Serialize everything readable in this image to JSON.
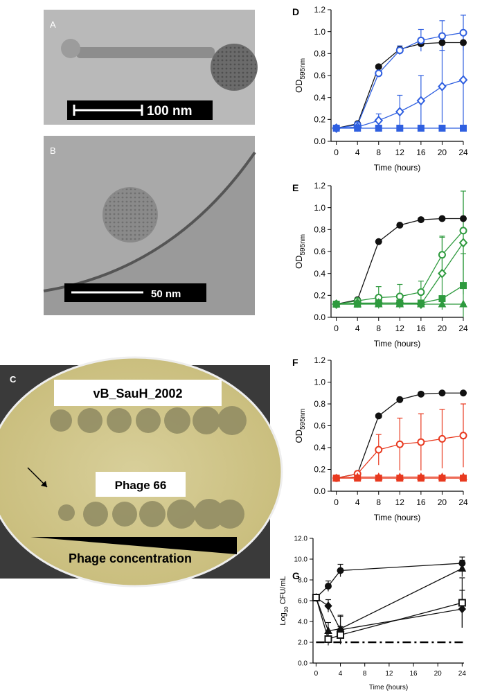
{
  "panels": [
    {
      "label": "A",
      "scale_bar": "100 nm"
    },
    {
      "label": "B",
      "scale_bar": "50 nm"
    }
  ],
  "plate": {
    "label": "C",
    "top_label": "vB_SauH_2002",
    "bottom_label": "Phage 66",
    "gradient_label": "Phage concentration"
  },
  "chart_data": [
    {
      "type": "line",
      "panel": "D",
      "x_label": "Time (hours)",
      "y_label": "OD",
      "y_label_sub": "595nm",
      "x": [
        0,
        4,
        8,
        12,
        16,
        20,
        24
      ],
      "xlim": [
        -1,
        24
      ],
      "xticks": [
        0,
        4,
        8,
        12,
        16,
        20,
        24
      ],
      "ylim": [
        0,
        1.2
      ],
      "yticks": [
        {
          "value": 0,
          "label": "0.0"
        },
        0.2,
        0.4,
        0.6,
        0.8,
        {
          "value": 1,
          "label": "1.0"
        },
        1.2
      ],
      "series": [
        {
          "color": "#111111",
          "marker": "circle",
          "filled": true,
          "values": [
            0.12,
            0.16,
            0.68,
            0.84,
            0.89,
            0.9,
            0.9
          ],
          "errors": [
            0,
            0,
            0,
            0,
            0,
            0,
            0
          ]
        },
        {
          "color": "#2f5fe0",
          "marker": "circle",
          "filled": false,
          "values": [
            0.12,
            0.15,
            0.62,
            0.83,
            0.92,
            0.96,
            0.99
          ],
          "errors": [
            0,
            0,
            0,
            0.04,
            0.1,
            0.14,
            0.16
          ]
        },
        {
          "color": "#2f5fe0",
          "marker": "diamond",
          "filled": false,
          "values": [
            0.12,
            0.13,
            0.19,
            0.27,
            0.37,
            0.5,
            0.56
          ],
          "errors": [
            0,
            0,
            0.06,
            0.15,
            0.23,
            0.33,
            0.43
          ]
        },
        {
          "color": "#2f5fe0",
          "marker": "square",
          "filled": true,
          "values": [
            0.12,
            0.12,
            0.12,
            0.12,
            0.12,
            0.12,
            0.12
          ],
          "errors": [
            0,
            0,
            0,
            0,
            0,
            0,
            0
          ]
        }
      ]
    },
    {
      "type": "line",
      "panel": "E",
      "x_label": "Time (hours)",
      "y_label": "OD",
      "y_label_sub": "595nm",
      "x": [
        0,
        4,
        8,
        12,
        16,
        20,
        24
      ],
      "xlim": [
        -1,
        24
      ],
      "xticks": [
        0,
        4,
        8,
        12,
        16,
        20,
        24
      ],
      "ylim": [
        0,
        1.2
      ],
      "yticks": [
        {
          "value": 0,
          "label": "0.0"
        },
        0.2,
        0.4,
        0.6,
        0.8,
        {
          "value": 1,
          "label": "1.0"
        },
        1.2
      ],
      "series": [
        {
          "color": "#111111",
          "marker": "circle",
          "filled": true,
          "values": [
            0.12,
            0.16,
            0.69,
            0.84,
            0.89,
            0.9,
            0.9
          ],
          "errors": [
            0,
            0,
            0,
            0,
            0,
            0,
            0
          ]
        },
        {
          "color": "#2e9a3e",
          "marker": "circle",
          "filled": false,
          "values": [
            0.12,
            0.15,
            0.18,
            0.19,
            0.23,
            0.57,
            0.79
          ],
          "errors": [
            0,
            0,
            0.1,
            0.11,
            0.1,
            0.17,
            0.36
          ]
        },
        {
          "color": "#2e9a3e",
          "marker": "diamond",
          "filled": false,
          "values": [
            0.12,
            0.13,
            0.13,
            0.13,
            0.12,
            0.4,
            0.68
          ],
          "errors": [
            0,
            0,
            0,
            0,
            0,
            0.33,
            0.47
          ]
        },
        {
          "color": "#2e9a3e",
          "marker": "square",
          "filled": true,
          "values": [
            0.12,
            0.12,
            0.13,
            0.13,
            0.13,
            0.17,
            0.29
          ],
          "errors": [
            0,
            0,
            0,
            0,
            0,
            0,
            0.29
          ]
        },
        {
          "color": "#2e9a3e",
          "marker": "triangle",
          "filled": true,
          "values": [
            0.12,
            0.12,
            0.12,
            0.12,
            0.12,
            0.12,
            0.12
          ],
          "errors": [
            0,
            0,
            0,
            0,
            0,
            0,
            0
          ]
        }
      ]
    },
    {
      "type": "line",
      "panel": "F",
      "x_label": "Time (hours)",
      "y_label": "OD",
      "y_label_sub": "595nm",
      "x": [
        0,
        4,
        8,
        12,
        16,
        20,
        24
      ],
      "xlim": [
        -1,
        24
      ],
      "xticks": [
        0,
        4,
        8,
        12,
        16,
        20,
        24
      ],
      "ylim": [
        0,
        1.2
      ],
      "yticks": [
        {
          "value": 0,
          "label": "0.0"
        },
        0.2,
        0.4,
        0.6,
        0.8,
        {
          "value": 1,
          "label": "1.0"
        },
        1.2
      ],
      "series": [
        {
          "color": "#111111",
          "marker": "circle",
          "filled": true,
          "values": [
            0.12,
            0.16,
            0.69,
            0.84,
            0.89,
            0.9,
            0.9
          ],
          "errors": [
            0,
            0,
            0,
            0,
            0,
            0,
            0
          ]
        },
        {
          "color": "#e8391f",
          "marker": "circle",
          "filled": false,
          "values": [
            0.12,
            0.16,
            0.38,
            0.43,
            0.45,
            0.48,
            0.51
          ],
          "errors": [
            0,
            0,
            0.14,
            0.24,
            0.26,
            0.27,
            0.29
          ]
        },
        {
          "color": "#e8391f",
          "marker": "triangle",
          "filled": true,
          "values": [
            0.12,
            0.13,
            0.13,
            0.13,
            0.13,
            0.13,
            0.13
          ],
          "errors": [
            0,
            0,
            0,
            0,
            0,
            0,
            0
          ]
        },
        {
          "color": "#e8391f",
          "marker": "square",
          "filled": true,
          "values": [
            0.12,
            0.12,
            0.12,
            0.12,
            0.12,
            0.12,
            0.12
          ],
          "errors": [
            0,
            0,
            0,
            0,
            0,
            0,
            0
          ]
        }
      ]
    },
    {
      "type": "line",
      "panel": "G",
      "x_label": "Time (hours)",
      "y_label": "Log",
      "y_label_sub": "10",
      "y_label_tail": " CFU/mL",
      "x": [
        0,
        2,
        4,
        24
      ],
      "xlim": [
        -0.5,
        24.3
      ],
      "xticks": [
        0,
        4,
        8,
        12,
        16,
        20,
        24
      ],
      "ylim": [
        0,
        12
      ],
      "yticks": [
        {
          "value": 0,
          "label": "0.0"
        },
        {
          "value": 2,
          "label": "2.0"
        },
        {
          "value": 4,
          "label": "4.0"
        },
        {
          "value": 6,
          "label": "6.0"
        },
        {
          "value": 8,
          "label": "8.0"
        },
        {
          "value": 10,
          "label": "10.0"
        },
        {
          "value": 12,
          "label": "12.0"
        }
      ],
      "detection_limit": 2,
      "series": [
        {
          "color": "#111111",
          "marker": "circle",
          "filled": true,
          "values": [
            6.3,
            7.4,
            8.9,
            9.6
          ],
          "errors": [
            0,
            0.5,
            0.6,
            0.6
          ]
        },
        {
          "color": "#111111",
          "marker": "diamond",
          "filled": true,
          "values": [
            6.3,
            5.5,
            3.2,
            5.2
          ],
          "errors": [
            0,
            0.6,
            1.4,
            1.8
          ]
        },
        {
          "color": "#111111",
          "marker": "triangle",
          "filled": true,
          "values": [
            6.3,
            3.1,
            3.3,
            9.1
          ],
          "errors": [
            0,
            0.8,
            1.2,
            0.8
          ]
        },
        {
          "color": "#111111",
          "marker": "square",
          "filled": false,
          "values": [
            6.3,
            2.3,
            2.7,
            5.8
          ],
          "errors": [
            0,
            0.6,
            0.8,
            2.4
          ]
        }
      ]
    }
  ]
}
